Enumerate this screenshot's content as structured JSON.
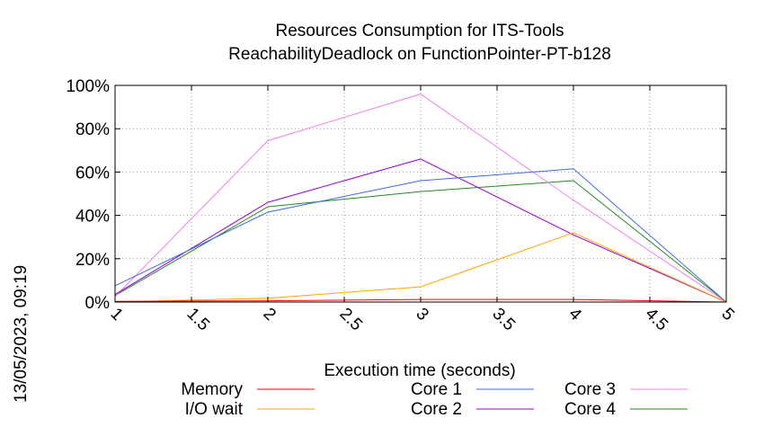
{
  "timestamp": "13/05/2023, 09:19",
  "chart_data": {
    "type": "line",
    "title": "Resources Consumption for ITS-Tools",
    "subtitle": "ReachabilityDeadlock on FunctionPointer-PT-b128",
    "xlabel": "Execution time (seconds)",
    "ylabel": "",
    "xlim": [
      1,
      5
    ],
    "ylim": [
      0,
      100
    ],
    "xticks": [
      1,
      1.5,
      2,
      2.5,
      3,
      3.5,
      4,
      4.5,
      5
    ],
    "xtick_labels": [
      "1",
      "1.5",
      "2",
      "2.5",
      "3",
      "3.5",
      "4",
      "4.5",
      "5"
    ],
    "yticks": [
      0,
      20,
      40,
      60,
      80,
      100
    ],
    "ytick_labels": [
      "0%",
      "20%",
      "40%",
      "60%",
      "80%",
      "100%"
    ],
    "grid": true,
    "legend_position": "bottom",
    "x": [
      1,
      2,
      3,
      4,
      5
    ],
    "series": [
      {
        "name": "Memory",
        "color": "#ff0000",
        "values": [
          0.3,
          0.6,
          1.2,
          1.2,
          0
        ]
      },
      {
        "name": "I/O wait",
        "color": "#ffa500",
        "values": [
          0,
          1.8,
          7,
          32,
          0
        ]
      },
      {
        "name": "Core 1",
        "color": "#4169e1",
        "values": [
          7.5,
          41.5,
          56,
          61.5,
          0
        ]
      },
      {
        "name": "Core 2",
        "color": "#9400d3",
        "values": [
          3.5,
          46,
          66,
          31,
          0
        ]
      },
      {
        "name": "Core 3",
        "color": "#ee82ee",
        "values": [
          2.5,
          74.5,
          96,
          47,
          0
        ]
      },
      {
        "name": "Core 4",
        "color": "#228b22",
        "values": [
          3,
          44,
          51,
          56,
          0
        ]
      }
    ]
  }
}
